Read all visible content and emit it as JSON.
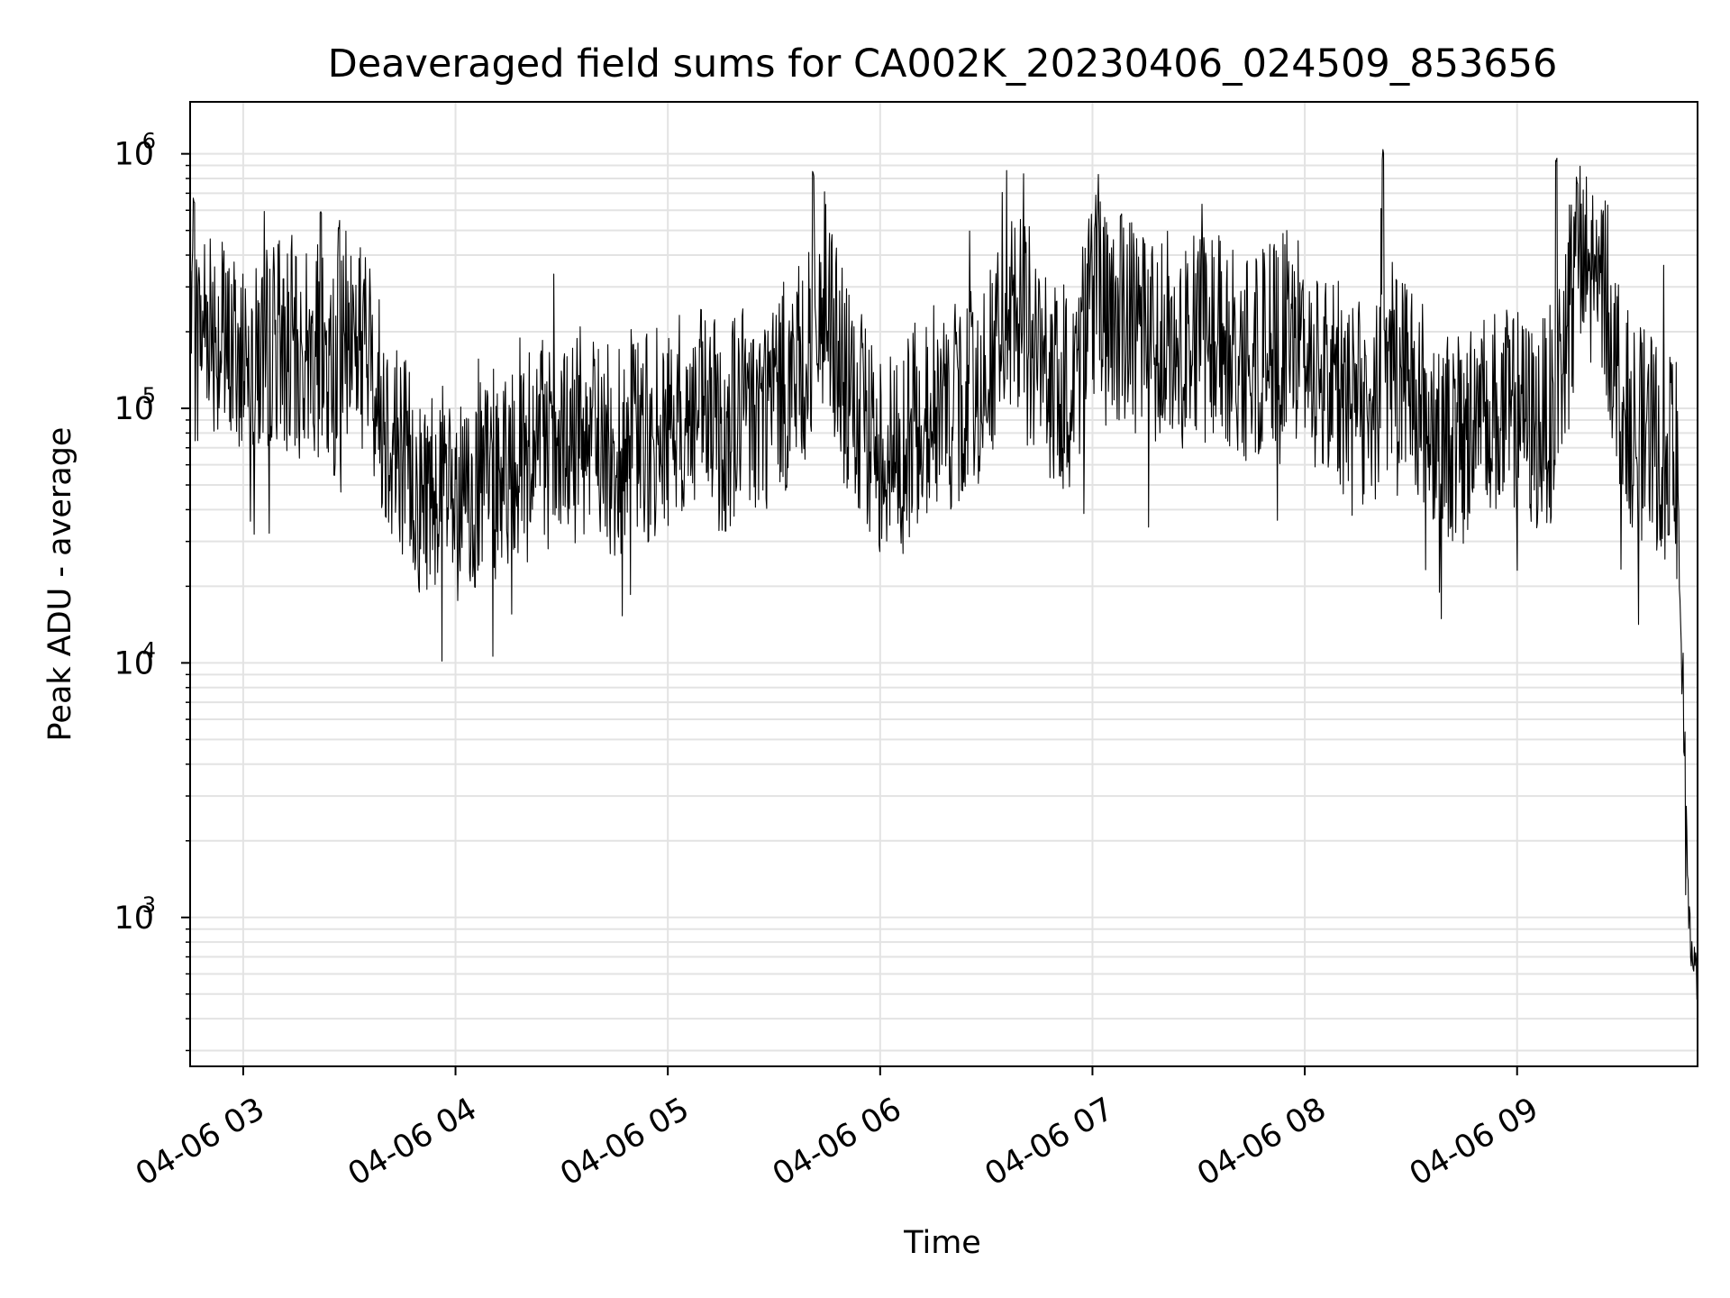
{
  "chart_data": {
    "type": "line",
    "title": "Deaveraged field sums for CA002K_20230406_024509_853656",
    "xlabel": "Time",
    "ylabel": "Peak ADU - average",
    "y_scale": "log",
    "ylim": [
      260,
      1600000
    ],
    "xlim": [
      "2023-04-06 02:45",
      "2023-04-06 09:51"
    ],
    "grid": true,
    "line_color": "#000000",
    "x_ticks": [
      {
        "value": "2023-04-06 03:00",
        "label": "04-06 03"
      },
      {
        "value": "2023-04-06 04:00",
        "label": "04-06 04"
      },
      {
        "value": "2023-04-06 05:00",
        "label": "04-06 05"
      },
      {
        "value": "2023-04-06 06:00",
        "label": "04-06 06"
      },
      {
        "value": "2023-04-06 07:00",
        "label": "04-06 07"
      },
      {
        "value": "2023-04-06 08:00",
        "label": "04-06 08"
      },
      {
        "value": "2023-04-06 09:00",
        "label": "04-06 09"
      }
    ],
    "y_ticks": [
      {
        "value": 1000,
        "base": "10",
        "exp": "3"
      },
      {
        "value": 10000,
        "base": "10",
        "exp": "4"
      },
      {
        "value": 100000,
        "base": "10",
        "exp": "5"
      },
      {
        "value": 1000000,
        "base": "10",
        "exp": "6"
      }
    ],
    "series": [
      {
        "x": [
          "2023-04-06 02:45",
          "2023-04-06 02:50",
          "2023-04-06 02:55",
          "2023-04-06 03:00",
          "2023-04-06 03:05",
          "2023-04-06 03:10",
          "2023-04-06 03:15",
          "2023-04-06 03:20",
          "2023-04-06 03:25",
          "2023-04-06 03:30",
          "2023-04-06 03:35",
          "2023-04-06 03:40",
          "2023-04-06 03:45",
          "2023-04-06 03:50",
          "2023-04-06 03:55",
          "2023-04-06 04:00",
          "2023-04-06 04:05",
          "2023-04-06 04:10",
          "2023-04-06 04:15",
          "2023-04-06 04:20",
          "2023-04-06 04:25",
          "2023-04-06 04:30",
          "2023-04-06 04:35",
          "2023-04-06 04:40",
          "2023-04-06 04:45",
          "2023-04-06 04:50",
          "2023-04-06 04:55",
          "2023-04-06 05:00",
          "2023-04-06 05:05",
          "2023-04-06 05:10",
          "2023-04-06 05:15",
          "2023-04-06 05:20",
          "2023-04-06 05:25",
          "2023-04-06 05:30",
          "2023-04-06 05:35",
          "2023-04-06 05:40",
          "2023-04-06 05:45",
          "2023-04-06 05:50",
          "2023-04-06 05:55",
          "2023-04-06 06:00",
          "2023-04-06 06:05",
          "2023-04-06 06:10",
          "2023-04-06 06:15",
          "2023-04-06 06:20",
          "2023-04-06 06:25",
          "2023-04-06 06:30",
          "2023-04-06 06:35",
          "2023-04-06 06:40",
          "2023-04-06 06:45",
          "2023-04-06 06:50",
          "2023-04-06 06:55",
          "2023-04-06 07:00",
          "2023-04-06 07:05",
          "2023-04-06 07:10",
          "2023-04-06 07:15",
          "2023-04-06 07:20",
          "2023-04-06 07:25",
          "2023-04-06 07:30",
          "2023-04-06 07:35",
          "2023-04-06 07:40",
          "2023-04-06 07:45",
          "2023-04-06 07:50",
          "2023-04-06 07:55",
          "2023-04-06 08:00",
          "2023-04-06 08:05",
          "2023-04-06 08:10",
          "2023-04-06 08:15",
          "2023-04-06 08:20",
          "2023-04-06 08:25",
          "2023-04-06 08:30",
          "2023-04-06 08:35",
          "2023-04-06 08:40",
          "2023-04-06 08:45",
          "2023-04-06 08:50",
          "2023-04-06 08:55",
          "2023-04-06 09:00",
          "2023-04-06 09:05",
          "2023-04-06 09:10",
          "2023-04-06 09:15",
          "2023-04-06 09:20",
          "2023-04-06 09:25",
          "2023-04-06 09:30",
          "2023-04-06 09:35",
          "2023-04-06 09:40",
          "2023-04-06 09:45",
          "2023-04-06 09:47",
          "2023-04-06 09:49",
          "2023-04-06 09:51"
        ],
        "y": [
          150000,
          250000,
          160000,
          180000,
          160000,
          200000,
          150000,
          180000,
          130000,
          210000,
          170000,
          90000,
          70000,
          45000,
          55000,
          40000,
          45000,
          55000,
          60000,
          80000,
          70000,
          60000,
          80000,
          75000,
          65000,
          80000,
          75000,
          85000,
          90000,
          95000,
          80000,
          100000,
          95000,
          110000,
          130000,
          160000,
          300000,
          120000,
          80000,
          70000,
          65000,
          85000,
          100000,
          95000,
          110000,
          140000,
          180000,
          250000,
          160000,
          110000,
          130000,
          300000,
          200000,
          220000,
          190000,
          200000,
          190000,
          180000,
          200000,
          170000,
          140000,
          180000,
          200000,
          170000,
          140000,
          120000,
          100000,
          110000,
          170000,
          140000,
          90000,
          80000,
          70000,
          120000,
          90000,
          100000,
          80000,
          100000,
          250000,
          350000,
          280000,
          100000,
          80000,
          70000,
          60000,
          5000,
          700,
          600
        ],
        "spikes": [
          {
            "x": "2023-04-06 02:46",
            "y": 700000
          },
          {
            "x": "2023-04-06 03:22",
            "y": 640000
          },
          {
            "x": "2023-04-06 03:27",
            "y": 550000
          },
          {
            "x": "2023-04-06 05:41",
            "y": 900000
          },
          {
            "x": "2023-04-06 07:08",
            "y": 620000
          },
          {
            "x": "2023-04-06 08:22",
            "y": 1050000
          },
          {
            "x": "2023-04-06 09:11",
            "y": 1020000
          },
          {
            "x": "2023-04-06 09:17",
            "y": 850000
          }
        ]
      }
    ]
  }
}
